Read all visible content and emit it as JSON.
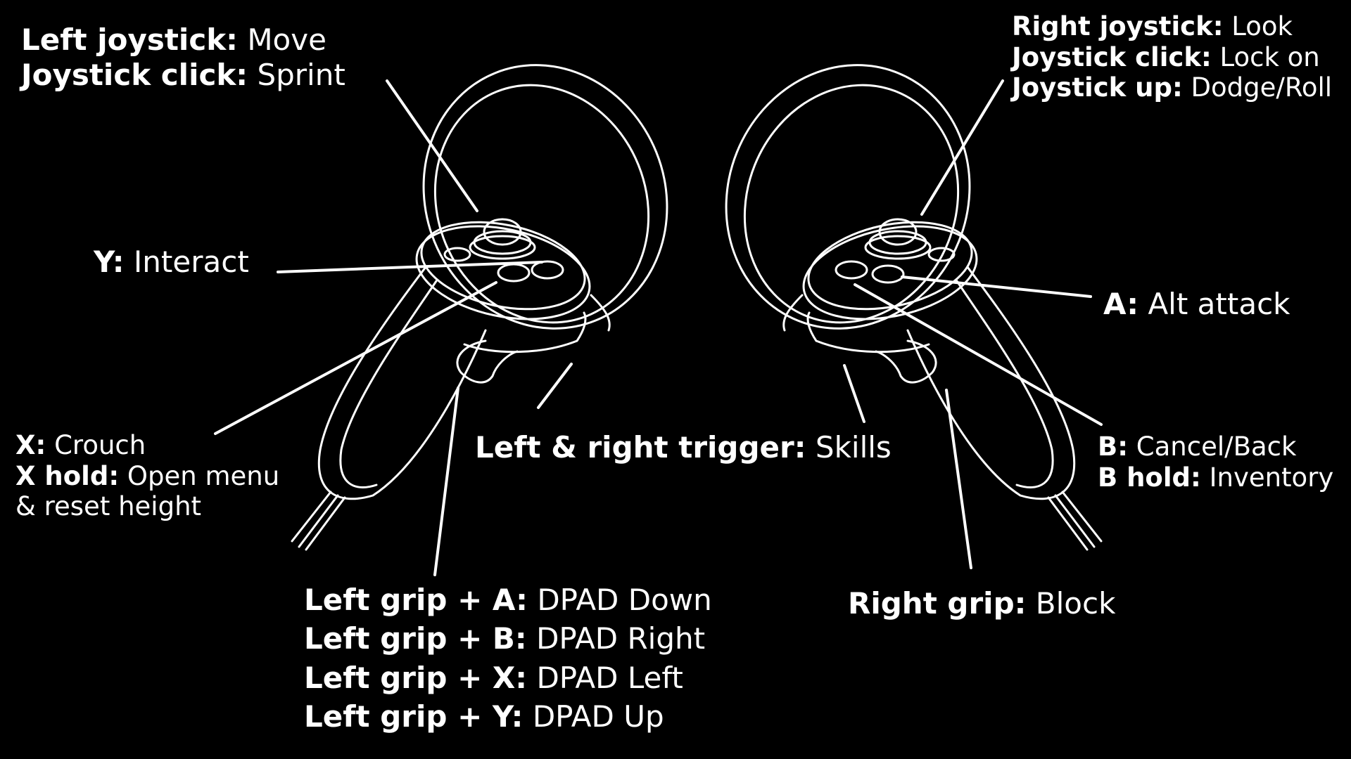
{
  "labels": {
    "left_joystick": [
      {
        "key": "Left joystick:",
        "value": "Move"
      },
      {
        "key": "Joystick click:",
        "value": "Sprint"
      }
    ],
    "y_button": [
      {
        "key": "Y:",
        "value": "Interact"
      }
    ],
    "x_button": [
      {
        "key": "X:",
        "value": "Crouch"
      },
      {
        "key": "X hold:",
        "value": "Open menu"
      },
      {
        "key": "",
        "value": "& reset height"
      }
    ],
    "triggers": [
      {
        "key": "Left & right trigger:",
        "value": "Skills"
      }
    ],
    "left_grip": [
      {
        "key": "Left grip + A:",
        "value": "DPAD Down"
      },
      {
        "key": "Left grip + B:",
        "value": "DPAD Right"
      },
      {
        "key": "Left grip + X:",
        "value": "DPAD Left"
      },
      {
        "key": "Left grip + Y:",
        "value": "DPAD Up"
      }
    ],
    "right_joystick": [
      {
        "key": "Right joystick:",
        "value": "Look"
      },
      {
        "key": "Joystick click:",
        "value": "Lock on"
      },
      {
        "key": "Joystick up:",
        "value": "Dodge/Roll"
      }
    ],
    "a_button": [
      {
        "key": "A:",
        "value": "Alt attack"
      }
    ],
    "b_button": [
      {
        "key": "B:",
        "value": "Cancel/Back"
      },
      {
        "key": "B hold:",
        "value": "Inventory"
      }
    ],
    "right_grip": [
      {
        "key": "Right grip:",
        "value": "Block"
      }
    ]
  },
  "colors": {
    "background": "#000000",
    "foreground": "#ffffff"
  }
}
